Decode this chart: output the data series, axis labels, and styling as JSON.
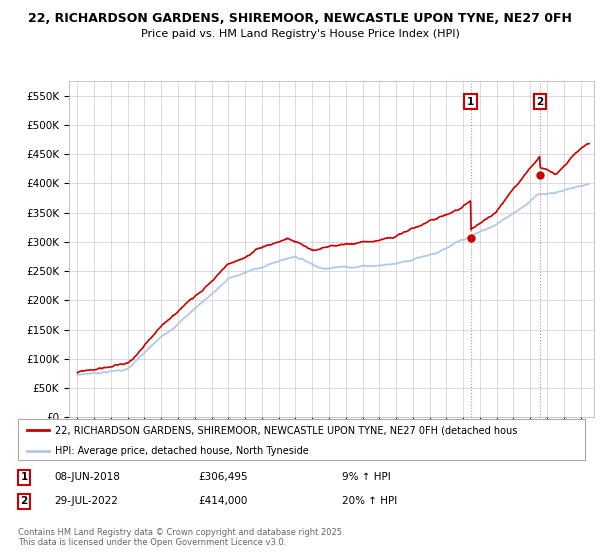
{
  "title_line1": "22, RICHARDSON GARDENS, SHIREMOOR, NEWCASTLE UPON TYNE, NE27 0FH",
  "title_line2": "Price paid vs. HM Land Registry's House Price Index (HPI)",
  "ylim": [
    0,
    575000
  ],
  "yticks": [
    0,
    50000,
    100000,
    150000,
    200000,
    250000,
    300000,
    350000,
    400000,
    450000,
    500000,
    550000
  ],
  "xlim_start": 1994.5,
  "xlim_end": 2025.8,
  "hpi_color": "#aec6e8",
  "price_color": "#cc0000",
  "marker1_date": 2018.44,
  "marker1_price": 306495,
  "marker1_label": "1",
  "marker2_date": 2022.57,
  "marker2_price": 414000,
  "marker2_label": "2",
  "legend_line1": "22, RICHARDSON GARDENS, SHIREMOOR, NEWCASTLE UPON TYNE, NE27 0FH (detached hous",
  "legend_line2": "HPI: Average price, detached house, North Tyneside",
  "footnote": "Contains HM Land Registry data © Crown copyright and database right 2025.\nThis data is licensed under the Open Government Licence v3.0.",
  "bg_color": "#ffffff",
  "plot_bg_color": "#ffffff",
  "grid_color": "#cccccc",
  "vline_color": "#cc0000",
  "vline_alpha": 0.5
}
